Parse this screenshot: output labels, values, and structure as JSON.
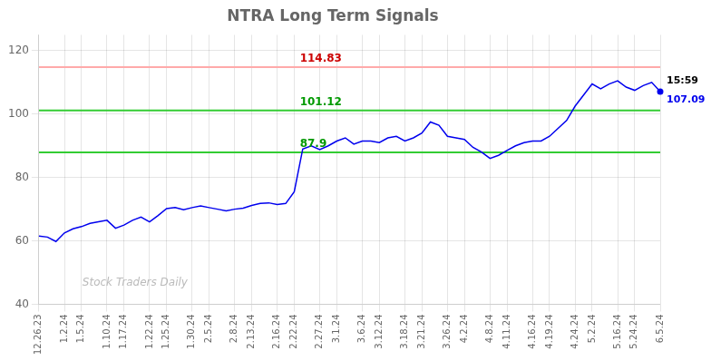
{
  "chart_data": {
    "type": "line",
    "title": "NTRA Long Term Signals",
    "categories": [
      "12.26.23",
      null,
      null,
      "1.2.24",
      null,
      "1.5.24",
      null,
      null,
      "1.10.24",
      null,
      "1.17.24",
      null,
      null,
      "1.22.24",
      null,
      "1.25.24",
      null,
      null,
      "1.30.24",
      null,
      "2.5.24",
      null,
      null,
      "2.8.24",
      null,
      "2.13.24",
      null,
      null,
      "2.16.24",
      null,
      "2.22.24",
      null,
      null,
      "2.27.24",
      null,
      "3.1.24",
      null,
      null,
      "3.6.24",
      null,
      "3.12.24",
      null,
      null,
      "3.18.24",
      null,
      "3.21.24",
      null,
      null,
      "3.26.24",
      null,
      "4.2.24",
      null,
      null,
      "4.8.24",
      null,
      "4.11.24",
      null,
      null,
      "4.16.24",
      null,
      "4.19.24",
      null,
      null,
      "4.24.24",
      null,
      "5.2.24",
      null,
      null,
      "5.16.24",
      null,
      "5.24.24",
      null,
      null,
      "6.5.24"
    ],
    "values": [
      61.5,
      61.2,
      59.8,
      62.5,
      63.8,
      64.5,
      65.5,
      66.0,
      66.5,
      64.0,
      65.0,
      66.5,
      67.5,
      66.0,
      68.0,
      70.2,
      70.5,
      69.8,
      70.5,
      71.0,
      70.5,
      70.0,
      69.5,
      70.0,
      70.3,
      71.2,
      71.8,
      72.0,
      71.5,
      71.8,
      75.5,
      89.0,
      90.0,
      88.8,
      90.0,
      91.5,
      92.5,
      90.5,
      91.5,
      91.5,
      91.0,
      92.5,
      93.0,
      91.5,
      92.5,
      94.0,
      97.5,
      96.5,
      93.0,
      92.5,
      92.0,
      89.5,
      88.0,
      86.0,
      87.0,
      88.5,
      90.0,
      91.0,
      91.5,
      91.5,
      93.0,
      95.5,
      98.0,
      102.5,
      106.0,
      109.5,
      108.0,
      109.5,
      110.5,
      108.5,
      107.5,
      109.0,
      110.0,
      107.09
    ],
    "color": "#0000ee",
    "ylim": [
      40,
      125
    ],
    "yticks": [
      40,
      60,
      80,
      100,
      120
    ],
    "grid": true,
    "annotations": [
      {
        "type": "hline",
        "y": 114.83,
        "text": "114.83",
        "color": "#cc0000",
        "line_color": "#ffaaaa"
      },
      {
        "type": "hline",
        "y": 101.12,
        "text": "101.12",
        "color": "#009900",
        "line_color": "#33cc33"
      },
      {
        "type": "hline",
        "y": 87.9,
        "text": "87.9",
        "color": "#009900",
        "line_color": "#33cc33"
      }
    ],
    "last_point": {
      "value": 107.09,
      "label": "107.09",
      "time": "15:59",
      "marker": "circle",
      "color": "#0000ee"
    },
    "watermark": {
      "text": "Stock Traders Daily",
      "color": "#bbbbbb"
    }
  }
}
